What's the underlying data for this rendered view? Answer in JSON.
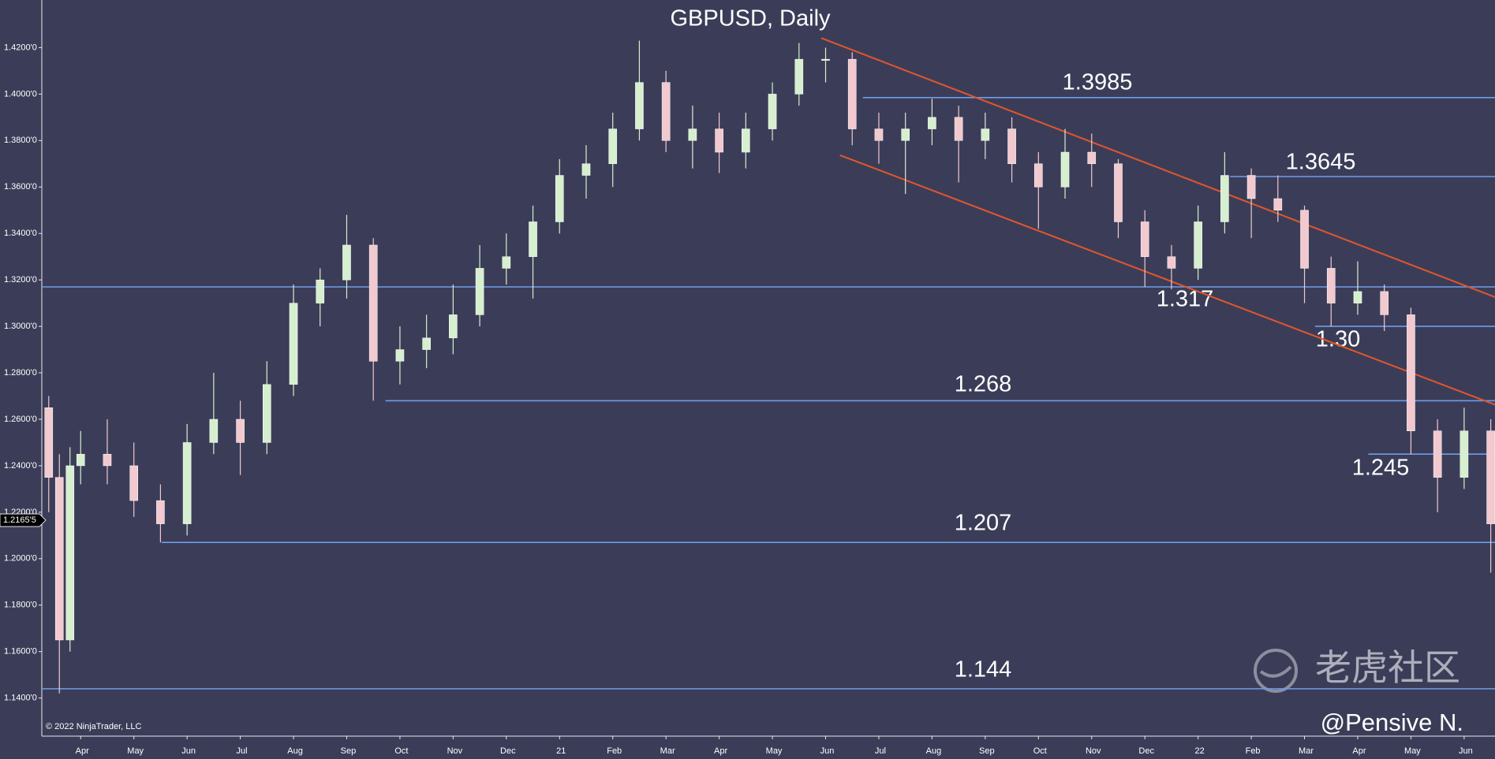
{
  "chart_data": {
    "type": "candlestick",
    "title": "GBPUSD, Daily",
    "copyright": "© 2022 NinjaTrader, LLC",
    "watermark": "老虎社区",
    "author": "@Pensive N.",
    "up_color": "#d6efcf",
    "down_color": "#f1c9cf",
    "level_color": "#6f9ce8",
    "trend_color": "#e2572b",
    "background": "#3b3d58",
    "grid": false,
    "xlim": [
      -0.73,
      26.58
    ],
    "ylim": [
      1.1236,
      1.4405
    ],
    "xticks": [
      {
        "value": 0,
        "label": "Apr"
      },
      {
        "value": 1,
        "label": "May"
      },
      {
        "value": 2,
        "label": "Jun"
      },
      {
        "value": 3,
        "label": "Jul"
      },
      {
        "value": 4,
        "label": "Aug"
      },
      {
        "value": 5,
        "label": "Sep"
      },
      {
        "value": 6,
        "label": "Oct"
      },
      {
        "value": 7,
        "label": "Nov"
      },
      {
        "value": 8,
        "label": "Dec"
      },
      {
        "value": 9,
        "label": "21"
      },
      {
        "value": 10,
        "label": "Feb"
      },
      {
        "value": 11,
        "label": "Mar"
      },
      {
        "value": 12,
        "label": "Apr"
      },
      {
        "value": 13,
        "label": "May"
      },
      {
        "value": 14,
        "label": "Jun"
      },
      {
        "value": 15,
        "label": "Jul"
      },
      {
        "value": 16,
        "label": "Aug"
      },
      {
        "value": 17,
        "label": "Sep"
      },
      {
        "value": 18,
        "label": "Oct"
      },
      {
        "value": 19,
        "label": "Nov"
      },
      {
        "value": 20,
        "label": "Dec"
      },
      {
        "value": 21,
        "label": "22"
      },
      {
        "value": 22,
        "label": "Feb"
      },
      {
        "value": 23,
        "label": "Mar"
      },
      {
        "value": 24,
        "label": "Apr"
      },
      {
        "value": 25,
        "label": "May"
      },
      {
        "value": 26,
        "label": "Jun"
      }
    ],
    "yticks": [
      {
        "value": 1.14,
        "label": "1.1400'0"
      },
      {
        "value": 1.16,
        "label": "1.1600'0"
      },
      {
        "value": 1.18,
        "label": "1.1800'0"
      },
      {
        "value": 1.2,
        "label": "1.2000'0"
      },
      {
        "value": 1.22,
        "label": "1.2200'0"
      },
      {
        "value": 1.24,
        "label": "1.2400'0"
      },
      {
        "value": 1.26,
        "label": "1.2600'0"
      },
      {
        "value": 1.28,
        "label": "1.2800'0"
      },
      {
        "value": 1.3,
        "label": "1.3000'0"
      },
      {
        "value": 1.32,
        "label": "1.3200'0"
      },
      {
        "value": 1.34,
        "label": "1.3400'0"
      },
      {
        "value": 1.36,
        "label": "1.3600'0"
      },
      {
        "value": 1.38,
        "label": "1.3800'0"
      },
      {
        "value": 1.4,
        "label": "1.4000'0"
      },
      {
        "value": 1.42,
        "label": "1.4200'0"
      }
    ],
    "last_price": {
      "value": 1.21655,
      "label": "1.2165'5"
    },
    "levels": [
      {
        "value": 1.3985,
        "label": "1.3985",
        "from": 14.7
      },
      {
        "value": 1.3645,
        "label": "1.3645",
        "from": 21.6
      },
      {
        "value": 1.317,
        "label": "1.317"
      },
      {
        "value": 1.3,
        "label": "1.30",
        "from": 23.2
      },
      {
        "value": 1.268,
        "label": "1.268",
        "from": 5.73
      },
      {
        "value": 1.245,
        "label": "1.245",
        "from": 24.2
      },
      {
        "value": 1.207,
        "label": "1.207",
        "from": 1.52
      },
      {
        "value": 1.144,
        "label": "1.144"
      }
    ],
    "trend_lines": [
      {
        "x": [
          13.92,
          26.58
        ],
        "y": [
          1.4241,
          1.3126
        ]
      },
      {
        "x": [
          14.27,
          26.58
        ],
        "y": [
          1.3737,
          1.2663
        ]
      }
    ],
    "x": [
      -0.6,
      -0.4,
      -0.2,
      0,
      0.5,
      1,
      1.5,
      2,
      2.5,
      3,
      3.5,
      4,
      4.5,
      5,
      5.5,
      6,
      6.5,
      7,
      7.5,
      8,
      8.5,
      9,
      9.5,
      10,
      10.5,
      11,
      11.5,
      12,
      12.5,
      13,
      13.5,
      14,
      14.5,
      15,
      15.5,
      16,
      16.5,
      17,
      17.5,
      18,
      18.5,
      19,
      19.5,
      20,
      20.5,
      21,
      21.5,
      22,
      22.5,
      23,
      23.5,
      24,
      24.5,
      25,
      25.5,
      26,
      26.5
    ],
    "open": [
      1.265,
      1.235,
      1.165,
      1.24,
      1.245,
      1.24,
      1.225,
      1.215,
      1.25,
      1.26,
      1.25,
      1.275,
      1.31,
      1.32,
      1.335,
      1.285,
      1.29,
      1.295,
      1.305,
      1.325,
      1.33,
      1.345,
      1.365,
      1.37,
      1.385,
      1.405,
      1.38,
      1.385,
      1.375,
      1.385,
      1.4,
      1.415,
      1.415,
      1.385,
      1.38,
      1.385,
      1.39,
      1.38,
      1.385,
      1.37,
      1.36,
      1.375,
      1.37,
      1.345,
      1.33,
      1.325,
      1.345,
      1.365,
      1.355,
      1.35,
      1.325,
      1.31,
      1.315,
      1.305,
      1.255,
      1.235,
      1.255
    ],
    "high": [
      1.27,
      1.245,
      1.248,
      1.255,
      1.26,
      1.25,
      1.232,
      1.258,
      1.28,
      1.268,
      1.285,
      1.318,
      1.325,
      1.348,
      1.338,
      1.3,
      1.305,
      1.318,
      1.335,
      1.34,
      1.352,
      1.372,
      1.378,
      1.392,
      1.423,
      1.41,
      1.395,
      1.392,
      1.392,
      1.405,
      1.422,
      1.42,
      1.418,
      1.392,
      1.392,
      1.398,
      1.395,
      1.392,
      1.39,
      1.375,
      1.385,
      1.383,
      1.372,
      1.35,
      1.335,
      1.352,
      1.375,
      1.368,
      1.365,
      1.352,
      1.33,
      1.328,
      1.318,
      1.308,
      1.26,
      1.265,
      1.26
    ],
    "low": [
      1.22,
      1.142,
      1.16,
      1.232,
      1.232,
      1.218,
      1.207,
      1.21,
      1.245,
      1.236,
      1.245,
      1.27,
      1.3,
      1.312,
      1.268,
      1.275,
      1.282,
      1.288,
      1.3,
      1.318,
      1.312,
      1.34,
      1.355,
      1.36,
      1.38,
      1.375,
      1.368,
      1.366,
      1.368,
      1.38,
      1.395,
      1.405,
      1.378,
      1.37,
      1.357,
      1.378,
      1.362,
      1.372,
      1.362,
      1.342,
      1.355,
      1.36,
      1.338,
      1.317,
      1.316,
      1.32,
      1.34,
      1.338,
      1.345,
      1.31,
      1.3,
      1.305,
      1.298,
      1.245,
      1.22,
      1.23,
      1.194
    ],
    "close": [
      1.235,
      1.165,
      1.24,
      1.245,
      1.24,
      1.225,
      1.215,
      1.25,
      1.26,
      1.25,
      1.275,
      1.31,
      1.32,
      1.335,
      1.285,
      1.29,
      1.295,
      1.305,
      1.325,
      1.33,
      1.345,
      1.365,
      1.37,
      1.385,
      1.405,
      1.38,
      1.385,
      1.375,
      1.385,
      1.4,
      1.415,
      1.415,
      1.385,
      1.38,
      1.385,
      1.39,
      1.38,
      1.385,
      1.37,
      1.36,
      1.375,
      1.37,
      1.345,
      1.33,
      1.325,
      1.345,
      1.365,
      1.355,
      1.35,
      1.325,
      1.31,
      1.315,
      1.305,
      1.255,
      1.235,
      1.255,
      1.215
    ]
  }
}
